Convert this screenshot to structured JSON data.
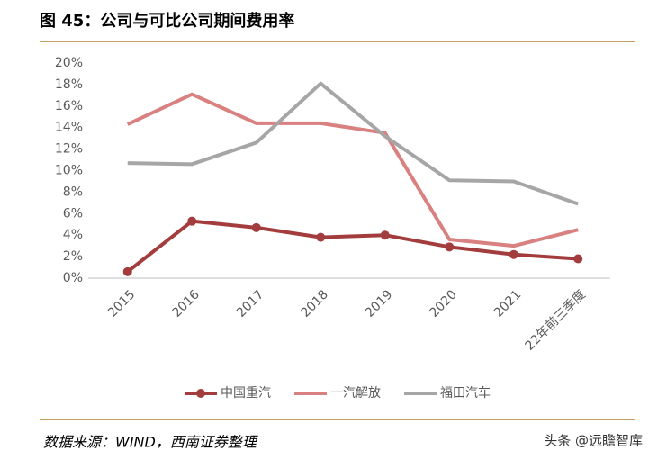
{
  "chart_data": {
    "type": "line",
    "title": "图 45：公司与可比公司期间费用率",
    "categories": [
      "2015",
      "2016",
      "2017",
      "2018",
      "2019",
      "2020",
      "2021",
      "22年前三季度"
    ],
    "series": [
      {
        "name": "中国重汽",
        "color": "#a33c3c",
        "marker": "circle",
        "values": [
          0.6,
          5.3,
          4.7,
          3.8,
          4.0,
          2.9,
          2.2,
          1.8
        ]
      },
      {
        "name": "一汽解放",
        "color": "#d98080",
        "values": [
          14.3,
          17.1,
          14.4,
          14.4,
          13.5,
          3.6,
          3.0,
          4.5
        ]
      },
      {
        "name": "福田汽车",
        "color": "#a6a6a6",
        "values": [
          10.7,
          10.6,
          12.6,
          18.1,
          13.2,
          9.1,
          9.0,
          6.9
        ]
      }
    ],
    "ylim": [
      0,
      20
    ],
    "yticks": [
      {
        "value": 0,
        "label": "0%"
      },
      {
        "value": 2,
        "label": "2%"
      },
      {
        "value": 4,
        "label": "4%"
      },
      {
        "value": 6,
        "label": "6%"
      },
      {
        "value": 8,
        "label": "8%"
      },
      {
        "value": 10,
        "label": "10%"
      },
      {
        "value": 12,
        "label": "12%"
      },
      {
        "value": 14,
        "label": "14%"
      },
      {
        "value": 16,
        "label": "16%"
      },
      {
        "value": 18,
        "label": "18%"
      },
      {
        "value": 20,
        "label": "20%"
      }
    ],
    "grid": false,
    "legend": "bottom"
  },
  "source": "数据来源：WIND，西南证券整理",
  "watermark": "头条 @远瞻智库"
}
